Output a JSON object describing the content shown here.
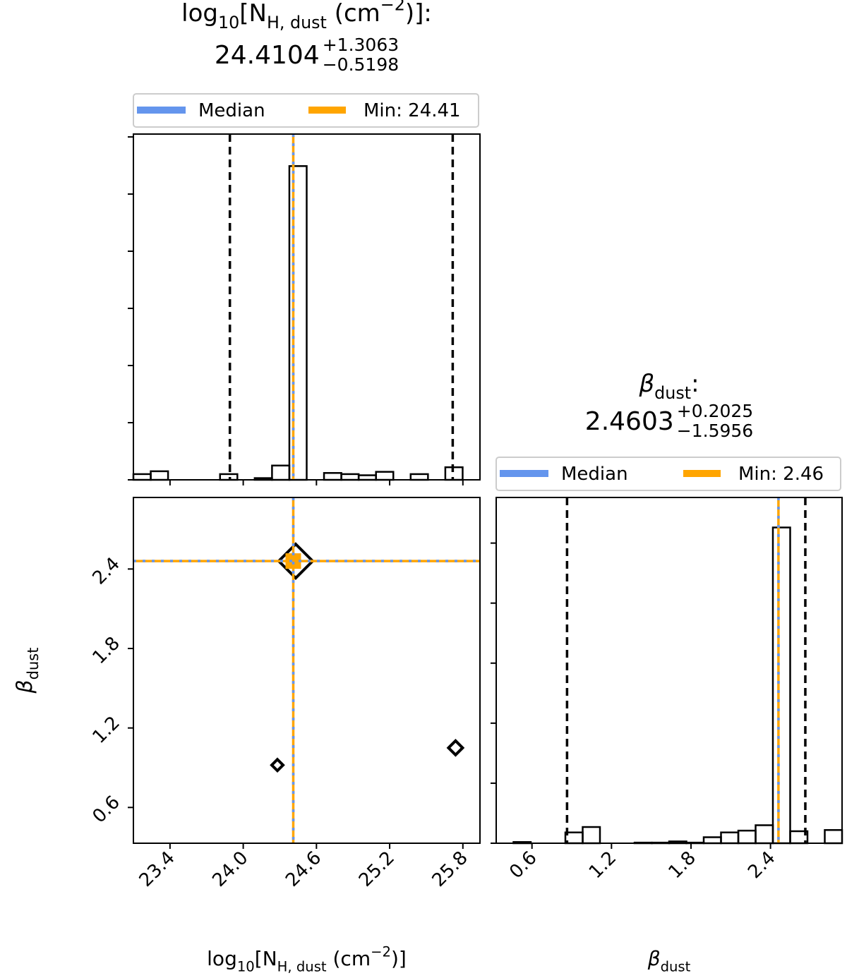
{
  "chart_data": [
    {
      "type": "histogram",
      "title_parts": [
        "log",
        "10",
        "[N",
        "H, dust",
        " (cm",
        "−2",
        ")]:"
      ],
      "median": 24.4104,
      "errors": [
        {
          "value": 1.3063,
          "label": "+1.3063"
        },
        {
          "value": 0.5198,
          "label": "−0.5198"
        }
      ],
      "series": [
        {
          "name": "Median",
          "color": "#6495ed"
        },
        {
          "name": "Min: 24.41",
          "color": "#ffa500"
        }
      ],
      "min_value": 24.41,
      "bins": [
        23.1,
        23.242,
        23.384,
        23.526,
        23.668,
        23.81,
        23.952,
        24.094,
        24.236,
        24.378,
        24.52,
        24.662,
        24.804,
        24.946,
        25.088,
        25.23,
        25.372,
        25.514,
        25.656,
        25.798,
        25.94
      ],
      "values": [
        0.1,
        0.15,
        0,
        0,
        0,
        0.1,
        0,
        0.03,
        0.25,
        5.49,
        0,
        0.12,
        0.1,
        0.08,
        0.14,
        0,
        0.1,
        0,
        0.22,
        0
      ],
      "xlim": [
        23.1,
        25.94
      ],
      "xticks": [
        23.4,
        24,
        24.6,
        25.2,
        25.8
      ],
      "ylim": [
        0,
        6.05
      ],
      "yticks": [
        0,
        1,
        2,
        3,
        4,
        5,
        6
      ]
    },
    {
      "type": "contour",
      "xlabel_parts": [
        "log",
        "10",
        "[N",
        "H, dust",
        " (cm",
        "−2",
        ")]"
      ],
      "ylabel_parts": [
        "β",
        "dust"
      ],
      "xlim": [
        23.1,
        25.94
      ],
      "xticks": [
        23.4,
        {
          "value": 24,
          "label": "24.0"
        },
        24.6,
        25.2,
        25.8
      ],
      "ylim": [
        0.33,
        2.94
      ],
      "yticks": [
        0.6,
        1.2,
        1.8,
        2.4
      ],
      "medians": [
        24.4104,
        2.4603
      ],
      "minima": [
        24.41,
        2.46
      ],
      "colors": [
        "#6495ed",
        "#ffa500"
      ],
      "contour_centers": {
        "x": [
          24.43,
          24.28,
          25.74
        ],
        "y": [
          2.46,
          0.92,
          1.05
        ]
      }
    },
    {
      "type": "histogram",
      "title_parts": [
        "β",
        "dust",
        ":"
      ],
      "median": 2.4603,
      "errors": [
        {
          "value": 0.2025,
          "label": "+0.2025"
        },
        {
          "value": 1.5956,
          "label": "−1.5956"
        }
      ],
      "series": [
        {
          "name": "Median",
          "color": "#6495ed"
        },
        {
          "name": "Min: 2.46",
          "color": "#ffa500"
        }
      ],
      "min_value": 2.46,
      "xlabel_parts": [
        "β",
        "dust"
      ],
      "bins": [
        0.33,
        0.4605,
        0.591,
        0.7215,
        0.852,
        0.9825,
        1.113,
        1.2435,
        1.374,
        1.5045,
        1.635,
        1.7655,
        1.896,
        2.0265,
        2.157,
        2.2875,
        2.418,
        2.5485,
        2.679,
        2.8095,
        2.94
      ],
      "values": [
        0,
        0.02,
        0,
        0,
        0.18,
        0.27,
        0,
        0,
        0.01,
        0.01,
        0.03,
        0.01,
        0.1,
        0.18,
        0.21,
        0.3,
        5.26,
        0.2,
        0,
        0.22
      ],
      "xlim": [
        0.33,
        2.94
      ],
      "xticks": [
        0.6,
        1.2,
        1.8,
        2.4
      ],
      "ylim": [
        0,
        5.76
      ],
      "yticks": [
        0,
        1,
        2,
        3,
        4,
        5
      ]
    }
  ]
}
